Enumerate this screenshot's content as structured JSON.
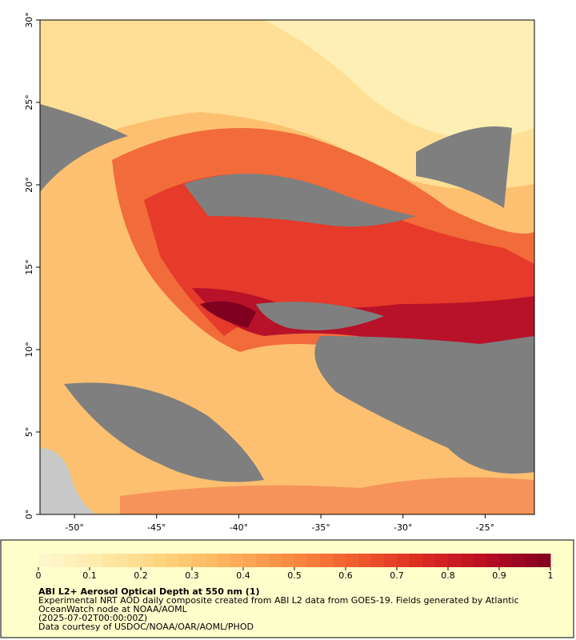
{
  "map": {
    "xlim": [
      -52.1,
      -22.0
    ],
    "ylim": [
      0,
      30
    ],
    "xticks": [
      {
        "value": -50,
        "label": "-50°"
      },
      {
        "value": -45,
        "label": "-45°"
      },
      {
        "value": -40,
        "label": "-40°"
      },
      {
        "value": -35,
        "label": "-35°"
      },
      {
        "value": -30,
        "label": "-30°"
      },
      {
        "value": -25,
        "label": "-25°"
      }
    ],
    "yticks": [
      {
        "value": 0,
        "label": "0°"
      },
      {
        "value": 5,
        "label": "5°"
      },
      {
        "value": 10,
        "label": "10°"
      },
      {
        "value": 15,
        "label": "15°"
      },
      {
        "value": 20,
        "label": "20°"
      },
      {
        "value": 25,
        "label": "25°"
      },
      {
        "value": 30,
        "label": "30°"
      }
    ]
  },
  "colorbar": {
    "range": [
      0,
      1
    ],
    "ticks": [
      0,
      0.1,
      0.2,
      0.3,
      0.4,
      0.5,
      0.6,
      0.7,
      0.8,
      0.9,
      1
    ],
    "colors": [
      "#fff8d0",
      "#ffe9a8",
      "#ffd27a",
      "#fdb05a",
      "#f98a40",
      "#ef5a2e",
      "#dc2a22",
      "#b80c22",
      "#800020"
    ]
  },
  "legend": {
    "title": "ABI L2+ Aerosol Optical Depth at 550 nm (1)",
    "lines": [
      "Experimental NRT AOD daily composite created from ABI L2 data from GOES-19. Fields generated by Atlantic",
      "OceanWatch node at NOAA/AOML",
      "(2025-07-02T00:00:00Z)",
      "Data courtesy of USDOC/NOAA/OAR/AOML/PHOD"
    ]
  }
}
